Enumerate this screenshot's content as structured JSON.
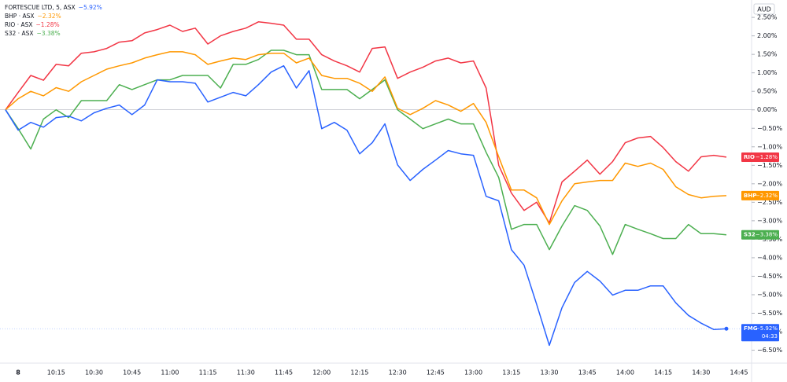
{
  "chart_data": {
    "type": "line",
    "currency": "AUD",
    "categories": [
      null,
      "8",
      null,
      null,
      "10:15",
      null,
      null,
      "10:30",
      null,
      null,
      "10:45",
      null,
      null,
      "11:00",
      null,
      null,
      "11:15",
      null,
      null,
      "11:30",
      null,
      null,
      "11:45",
      null,
      null,
      "12:00",
      null,
      null,
      "12:15",
      null,
      null,
      "12:30",
      null,
      null,
      "12:45",
      null,
      null,
      "13:00",
      null,
      null,
      "13:15",
      null,
      null,
      "13:30",
      null,
      null,
      "13:45",
      null,
      null,
      "14:00",
      null,
      null,
      "14:15",
      null,
      null,
      "14:30",
      null,
      null,
      "14:45"
    ],
    "ylim": [
      -6.85,
      2.97
    ],
    "yticks": [
      {
        "value": 2.5,
        "label": "2.50%"
      },
      {
        "value": 2,
        "label": "2.00%"
      },
      {
        "value": 1.5,
        "label": "1.50%"
      },
      {
        "value": 1,
        "label": "1.00%"
      },
      {
        "value": 0.5,
        "label": "0.50%"
      },
      {
        "value": 0,
        "label": "0.00%"
      },
      {
        "value": -0.5,
        "label": "−0.50%"
      },
      {
        "value": -1,
        "label": "−1.00%"
      },
      {
        "value": -1.5,
        "label": "−1.50%"
      },
      {
        "value": -2,
        "label": "−2.00%"
      },
      {
        "value": -2.5,
        "label": "−2.50%"
      },
      {
        "value": -3,
        "label": "−3.00%"
      },
      {
        "value": -3.5,
        "label": "−3.50%"
      },
      {
        "value": -4,
        "label": "−4.00%"
      },
      {
        "value": -4.5,
        "label": "−4.50%"
      },
      {
        "value": -5,
        "label": "−5.00%"
      },
      {
        "value": -5.5,
        "label": "−5.50%"
      },
      {
        "value": -6,
        "label": "−6.00%"
      },
      {
        "value": -6.5,
        "label": "−6.50%"
      }
    ],
    "countdown": "04:33",
    "series": [
      {
        "name": "FMG",
        "legend": "FORTESCUE LTD, 5, ASX",
        "color": "#2962ff",
        "change": -5.92,
        "change_label": "−5.92%",
        "values": [
          0,
          -0.55,
          -0.34,
          -0.47,
          -0.21,
          -0.17,
          -0.3,
          -0.08,
          0.04,
          0.13,
          -0.13,
          0.13,
          0.81,
          0.76,
          0.76,
          0.72,
          0.21,
          0.34,
          0.47,
          0.38,
          0.68,
          1.02,
          1.19,
          0.59,
          1.06,
          -0.51,
          -0.34,
          -0.55,
          -1.19,
          -0.89,
          -0.38,
          -1.49,
          -1.91,
          -1.61,
          -1.36,
          -1.1,
          -1.19,
          -1.23,
          -2.34,
          -2.46,
          -3.78,
          -4.2,
          -5.26,
          -6.37,
          -5.35,
          -4.67,
          -4.37,
          -4.63,
          -5.01,
          -4.88,
          -4.88,
          -4.76,
          -4.76,
          -5.22,
          -5.56,
          -5.77,
          -5.94,
          -5.92,
          null
        ]
      },
      {
        "name": "BHP",
        "legend": "BHP · ASX",
        "color": "#ff9800",
        "change": -2.32,
        "change_label": "−2.32%",
        "values": [
          0,
          0.3,
          0.5,
          0.38,
          0.6,
          0.5,
          0.76,
          0.93,
          1.1,
          1.19,
          1.27,
          1.4,
          1.49,
          1.57,
          1.57,
          1.49,
          1.23,
          1.32,
          1.4,
          1.36,
          1.49,
          1.53,
          1.53,
          1.27,
          1.4,
          0.93,
          0.85,
          0.85,
          0.72,
          0.5,
          0.89,
          0.04,
          -0.13,
          0.04,
          0.25,
          0.13,
          -0.04,
          0.17,
          -0.34,
          -1.27,
          -2.17,
          -2.17,
          -2.38,
          -3.1,
          -2.46,
          -2.0,
          -1.95,
          -1.91,
          -1.91,
          -1.44,
          -1.53,
          -1.44,
          -1.61,
          -2.08,
          -2.29,
          -2.38,
          -2.34,
          -2.32,
          null
        ]
      },
      {
        "name": "RIO",
        "legend": "RIO · ASX",
        "color": "#f23645",
        "change": -1.28,
        "change_label": "−1.28%",
        "values": [
          0,
          0.47,
          0.93,
          0.8,
          1.23,
          1.19,
          1.53,
          1.57,
          1.66,
          1.83,
          1.87,
          2.08,
          2.17,
          2.29,
          2.12,
          2.21,
          1.78,
          2.0,
          2.12,
          2.21,
          2.38,
          2.34,
          2.29,
          1.91,
          1.91,
          1.49,
          1.32,
          1.19,
          1.02,
          1.66,
          1.7,
          0.85,
          1.02,
          1.15,
          1.32,
          1.4,
          1.27,
          1.32,
          0.59,
          -1.5,
          -2.25,
          -2.72,
          -2.5,
          -3.06,
          -1.95,
          -1.66,
          -1.36,
          -1.74,
          -1.4,
          -0.89,
          -0.76,
          -0.72,
          -1.02,
          -1.4,
          -1.66,
          -1.27,
          -1.23,
          -1.28,
          null
        ]
      },
      {
        "name": "S32",
        "legend": "S32 · ASX",
        "color": "#4caf50",
        "change": -3.38,
        "change_label": "−3.38%",
        "values": [
          0,
          -0.51,
          -1.06,
          -0.25,
          0,
          -0.21,
          0.25,
          0.25,
          0.25,
          0.68,
          0.55,
          0.68,
          0.81,
          0.81,
          0.93,
          0.93,
          0.93,
          0.59,
          1.23,
          1.23,
          1.36,
          1.61,
          1.61,
          1.49,
          1.49,
          0.55,
          0.55,
          0.55,
          0.3,
          0.55,
          0.81,
          0,
          -0.25,
          -0.51,
          -0.38,
          -0.25,
          -0.38,
          -0.38,
          -1.15,
          -1.83,
          -3.23,
          -3.1,
          -3.1,
          -3.78,
          -3.14,
          -2.59,
          -2.72,
          -3.14,
          -3.91,
          -3.1,
          -3.23,
          -3.35,
          -3.48,
          -3.48,
          -3.1,
          -3.35,
          -3.35,
          -3.38,
          null
        ]
      }
    ]
  }
}
